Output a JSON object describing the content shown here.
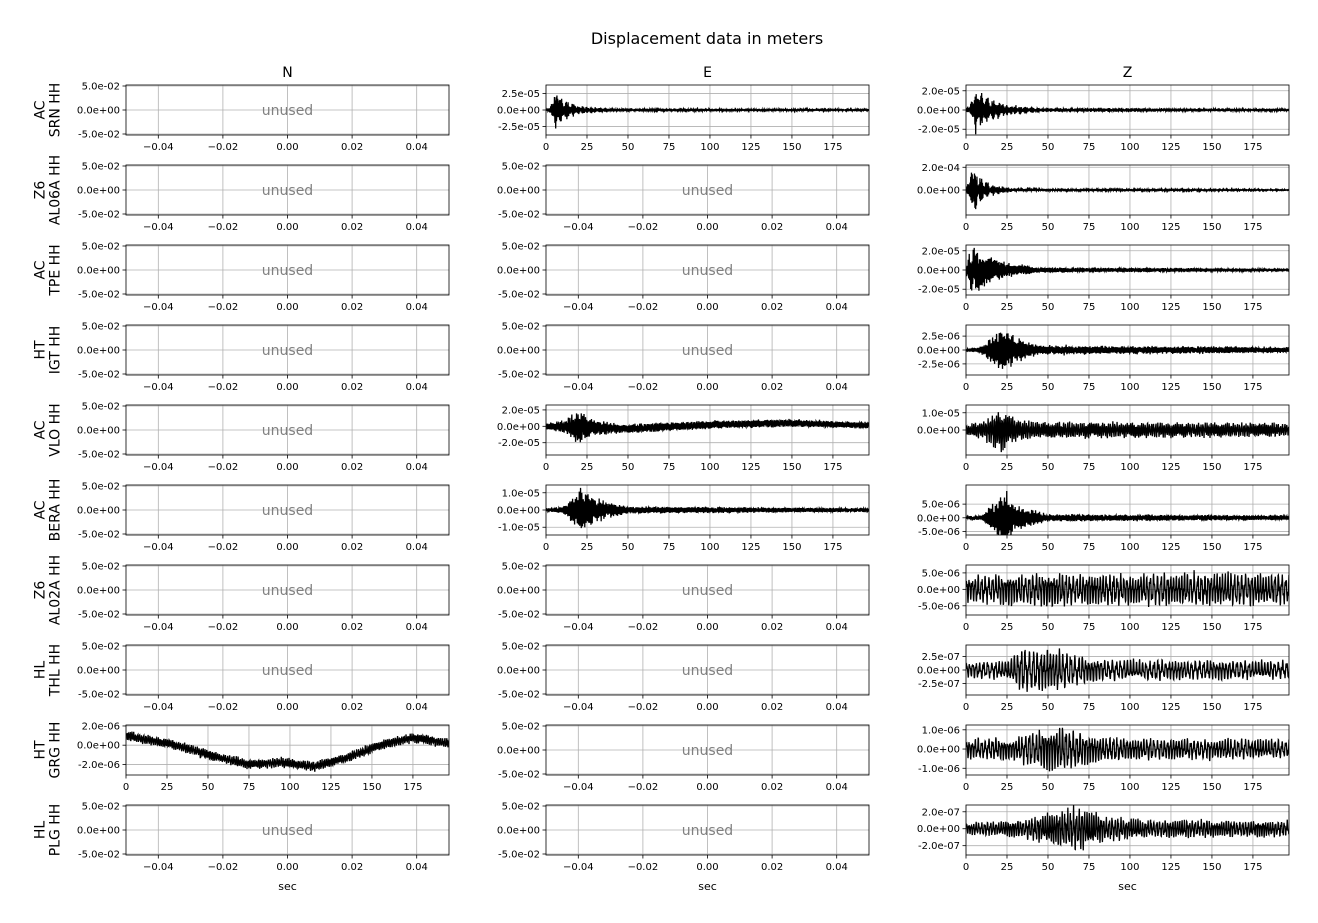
{
  "chart_data": {
    "type": "line",
    "title": "Displacement data in meters",
    "columns": [
      "N",
      "E",
      "Z"
    ],
    "xlabel": "sec",
    "unused_text": "unused",
    "grid": true,
    "line_color": "#000000",
    "unused_color": "#808080",
    "grid_color": "#b0b0b0",
    "unused_xticks": [
      "−0.04",
      "−0.02",
      "0.00",
      "0.02",
      "0.04"
    ],
    "unused_yticks": [
      "5.0e-02",
      "0.0e+00",
      "-5.0e-02"
    ],
    "data_xticks": [
      "0",
      "25",
      "50",
      "75",
      "100",
      "125",
      "150",
      "175"
    ],
    "data_xlim": [
      0,
      197
    ],
    "rows": [
      {
        "label": [
          "AC",
          "SRN HH"
        ],
        "panels": [
          {
            "unused": true
          },
          {
            "unused": false,
            "ylim": [
              -3.8e-05,
              3.8e-05
            ],
            "yticks": [
              {
                "v": 2.5e-05,
                "t": "2.5e-05"
              },
              {
                "v": 0,
                "t": "0.0e+00"
              },
              {
                "v": -2.5e-05,
                "t": "-2.5e-05"
              }
            ],
            "env": [
              [
                0,
                0.03
              ],
              [
                3,
                0.2
              ],
              [
                6,
                1.0
              ],
              [
                10,
                0.5
              ],
              [
                20,
                0.2
              ],
              [
                40,
                0.08
              ],
              [
                197,
                0.03
              ]
            ],
            "amp": 3.4e-05,
            "trend": [],
            "freq": 2.0,
            "noise": 0.02
          },
          {
            "unused": false,
            "ylim": [
              -2.6e-05,
              2.6e-05
            ],
            "yticks": [
              {
                "v": 2e-05,
                "t": "2.0e-05"
              },
              {
                "v": 0,
                "t": "0.0e+00"
              },
              {
                "v": -2e-05,
                "t": "-2.0e-05"
              }
            ],
            "env": [
              [
                0,
                0.05
              ],
              [
                3,
                0.3
              ],
              [
                6,
                1.0
              ],
              [
                12,
                0.6
              ],
              [
                25,
                0.25
              ],
              [
                45,
                0.1
              ],
              [
                197,
                0.05
              ]
            ],
            "amp": 2.4e-05,
            "trend": [],
            "freq": 2.0,
            "noise": 0.02
          }
        ]
      },
      {
        "label": [
          "Z6",
          "AL06A HH"
        ],
        "panels": [
          {
            "unused": true
          },
          {
            "unused": true
          },
          {
            "unused": false,
            "ylim": [
              -0.00022,
              0.00022
            ],
            "yticks": [
              {
                "v": 0.0002,
                "t": "2.0e-04"
              },
              {
                "v": 0,
                "t": "0.0e+00"
              }
            ],
            "env": [
              [
                0,
                0.05
              ],
              [
                2,
                0.5
              ],
              [
                4,
                1.0
              ],
              [
                8,
                0.6
              ],
              [
                15,
                0.25
              ],
              [
                30,
                0.06
              ],
              [
                197,
                0.02
              ]
            ],
            "amp": 0.00021,
            "trend": [],
            "freq": 2.0,
            "noise": 0.01
          }
        ]
      },
      {
        "label": [
          "AC",
          "TPE HH"
        ],
        "panels": [
          {
            "unused": true
          },
          {
            "unused": true
          },
          {
            "unused": false,
            "ylim": [
              -2.6e-05,
              2.6e-05
            ],
            "yticks": [
              {
                "v": 2e-05,
                "t": "2.0e-05"
              },
              {
                "v": 0,
                "t": "0.0e+00"
              },
              {
                "v": -2e-05,
                "t": "-2.0e-05"
              }
            ],
            "env": [
              [
                0,
                0.2
              ],
              [
                2,
                0.8
              ],
              [
                5,
                1.0
              ],
              [
                12,
                0.7
              ],
              [
                25,
                0.35
              ],
              [
                45,
                0.12
              ],
              [
                197,
                0.06
              ]
            ],
            "amp": 2.4e-05,
            "trend": [],
            "freq": 1.5,
            "noise": 0.03
          }
        ]
      },
      {
        "label": [
          "HT",
          "IGT HH"
        ],
        "panels": [
          {
            "unused": true
          },
          {
            "unused": true
          },
          {
            "unused": false,
            "ylim": [
              -4.5e-06,
              4.5e-06
            ],
            "yticks": [
              {
                "v": 2.5e-06,
                "t": "2.5e-06"
              },
              {
                "v": 0,
                "t": "0.0e+00"
              },
              {
                "v": -2.5e-06,
                "t": "-2.5e-06"
              }
            ],
            "env": [
              [
                0,
                0.05
              ],
              [
                8,
                0.1
              ],
              [
                15,
                0.5
              ],
              [
                22,
                1.0
              ],
              [
                30,
                0.55
              ],
              [
                45,
                0.2
              ],
              [
                197,
                0.12
              ]
            ],
            "amp": 4.3e-06,
            "trend": [],
            "freq": 1.2,
            "noise": 0.06
          }
        ]
      },
      {
        "label": [
          "AC",
          "VLO HH"
        ],
        "panels": [
          {
            "unused": true
          },
          {
            "unused": false,
            "ylim": [
              -3.5e-05,
              2.6e-05
            ],
            "yticks": [
              {
                "v": 2e-05,
                "t": "2.0e-05"
              },
              {
                "v": 0,
                "t": "0.0e+00"
              },
              {
                "v": -2e-05,
                "t": "-2.0e-05"
              }
            ],
            "env": [
              [
                0,
                0.15
              ],
              [
                12,
                0.35
              ],
              [
                20,
                1.0
              ],
              [
                28,
                0.45
              ],
              [
                45,
                0.25
              ],
              [
                197,
                0.18
              ]
            ],
            "amp": 2.4e-05,
            "trend": [
              [
                0,
                0
              ],
              [
                50,
                -3e-06
              ],
              [
                100,
                2e-06
              ],
              [
                150,
                4e-06
              ],
              [
                197,
                1e-06
              ]
            ],
            "freq": 1.0,
            "noise": 0.04
          },
          {
            "unused": false,
            "ylim": [
              -1.45e-05,
              1.45e-05
            ],
            "yticks": [
              {
                "v": 1e-05,
                "t": "1.0e-05"
              },
              {
                "v": 0,
                "t": "0.0e+00"
              }
            ],
            "env": [
              [
                0,
                0.2
              ],
              [
                12,
                0.45
              ],
              [
                20,
                1.0
              ],
              [
                30,
                0.5
              ],
              [
                50,
                0.35
              ],
              [
                197,
                0.3
              ]
            ],
            "amp": 1.4e-05,
            "trend": [],
            "freq": 0.8,
            "noise": 0.06
          }
        ]
      },
      {
        "label": [
          "AC",
          "BERA HH"
        ],
        "panels": [
          {
            "unused": true
          },
          {
            "unused": false,
            "ylim": [
              -1.45e-05,
              1.45e-05
            ],
            "yticks": [
              {
                "v": 1e-05,
                "t": "1.0e-05"
              },
              {
                "v": 0,
                "t": "0.0e+00"
              },
              {
                "v": -1e-05,
                "t": "-1.0e-05"
              }
            ],
            "env": [
              [
                0,
                0.05
              ],
              [
                10,
                0.15
              ],
              [
                17,
                0.6
              ],
              [
                22,
                1.0
              ],
              [
                30,
                0.5
              ],
              [
                50,
                0.15
              ],
              [
                197,
                0.08
              ]
            ],
            "amp": 1.4e-05,
            "trend": [],
            "freq": 1.2,
            "noise": 0.04
          },
          {
            "unused": false,
            "ylim": [
              -6.3e-06,
              1.2e-05
            ],
            "yticks": [
              {
                "v": 5e-06,
                "t": "5.0e-06"
              },
              {
                "v": 0,
                "t": "0.0e+00"
              },
              {
                "v": -5e-06,
                "t": "-5.0e-06"
              }
            ],
            "env": [
              [
                0,
                0.04
              ],
              [
                10,
                0.1
              ],
              [
                17,
                0.5
              ],
              [
                23,
                1.0
              ],
              [
                30,
                0.45
              ],
              [
                50,
                0.12
              ],
              [
                197,
                0.08
              ]
            ],
            "amp": 1.1e-05,
            "trend": [],
            "freq": 1.2,
            "noise": 0.04
          }
        ]
      },
      {
        "label": [
          "Z6",
          "AL02A HH"
        ],
        "panels": [
          {
            "unused": true
          },
          {
            "unused": true
          },
          {
            "unused": false,
            "ylim": [
              -7.8e-06,
              7.4e-06
            ],
            "yticks": [
              {
                "v": 5e-06,
                "t": "5.0e-06"
              },
              {
                "v": 0,
                "t": "0.0e+00"
              },
              {
                "v": -5e-06,
                "t": "-5.0e-06"
              }
            ],
            "env": [
              [
                0,
                0.6
              ],
              [
                50,
                0.75
              ],
              [
                100,
                0.7
              ],
              [
                150,
                0.8
              ],
              [
                197,
                0.7
              ]
            ],
            "amp": 7e-06,
            "trend": [],
            "freq": 0.5,
            "noise": 0.05
          }
        ]
      },
      {
        "label": [
          "HL",
          "THL HH"
        ],
        "panels": [
          {
            "unused": true
          },
          {
            "unused": true
          },
          {
            "unused": false,
            "ylim": [
              -4.6e-07,
              4.6e-07
            ],
            "yticks": [
              {
                "v": 2.5e-07,
                "t": "2.5e-07"
              },
              {
                "v": 0,
                "t": "0.0e+00"
              },
              {
                "v": -2.5e-07,
                "t": "-2.5e-07"
              }
            ],
            "env": [
              [
                0,
                0.35
              ],
              [
                25,
                0.4
              ],
              [
                35,
                1.0
              ],
              [
                55,
                0.95
              ],
              [
                70,
                0.6
              ],
              [
                90,
                0.45
              ],
              [
                197,
                0.4
              ]
            ],
            "amp": 4.4e-07,
            "trend": [],
            "freq": 0.45,
            "noise": 0.06
          }
        ]
      },
      {
        "label": [
          "HT",
          "GRG HH"
        ],
        "panels": [
          {
            "unused": false,
            "ylim": [
              -3.1e-06,
              2.1e-06
            ],
            "yticks": [
              {
                "v": 2e-06,
                "t": "2.0e-06"
              },
              {
                "v": 0,
                "t": "0.0e+00"
              },
              {
                "v": -2e-06,
                "t": "-2.0e-06"
              }
            ],
            "env": [
              [
                0,
                0.35
              ],
              [
                197,
                0.35
              ]
            ],
            "amp": 1.5e-06,
            "trend": [
              [
                0,
                1e-06
              ],
              [
                30,
                0
              ],
              [
                55,
                -1.2e-06
              ],
              [
                75,
                -2e-06
              ],
              [
                95,
                -1.8e-06
              ],
              [
                115,
                -2.2e-06
              ],
              [
                135,
                -1.3e-06
              ],
              [
                155,
                0
              ],
              [
                175,
                8e-07
              ],
              [
                197,
                2e-07
              ]
            ],
            "freq": 0.8,
            "noise": 0.1
          },
          {
            "unused": true
          },
          {
            "unused": false,
            "ylim": [
              -1.35e-06,
              1.25e-06
            ],
            "yticks": [
              {
                "v": 1e-06,
                "t": "1.0e-06"
              },
              {
                "v": 0,
                "t": "0.0e+00"
              },
              {
                "v": -1e-06,
                "t": "-1.0e-06"
              }
            ],
            "env": [
              [
                0,
                0.45
              ],
              [
                30,
                0.5
              ],
              [
                40,
                0.85
              ],
              [
                60,
                1.0
              ],
              [
                75,
                0.65
              ],
              [
                100,
                0.5
              ],
              [
                197,
                0.45
              ]
            ],
            "amp": 1.2e-06,
            "trend": [],
            "freq": 0.5,
            "noise": 0.06
          }
        ]
      },
      {
        "label": [
          "HL",
          "PLG HH"
        ],
        "panels": [
          {
            "unused": true
          },
          {
            "unused": true
          },
          {
            "unused": false,
            "ylim": [
              -3.1e-07,
              2.8e-07
            ],
            "yticks": [
              {
                "v": 2e-07,
                "t": "2.0e-07"
              },
              {
                "v": 0,
                "t": "0.0e+00"
              },
              {
                "v": -2e-07,
                "t": "-2.0e-07"
              }
            ],
            "env": [
              [
                0,
                0.25
              ],
              [
                35,
                0.4
              ],
              [
                50,
                0.7
              ],
              [
                70,
                1.0
              ],
              [
                85,
                0.55
              ],
              [
                110,
                0.4
              ],
              [
                197,
                0.35
              ]
            ],
            "amp": 2.8e-07,
            "trend": [],
            "freq": 0.6,
            "noise": 0.06
          }
        ]
      }
    ]
  }
}
